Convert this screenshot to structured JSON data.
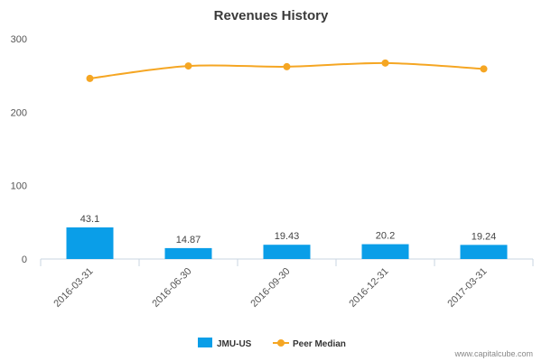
{
  "chart_data": {
    "type": "bar",
    "title": "Revenues History",
    "categories": [
      "2016-03-31",
      "2016-06-30",
      "2016-09-30",
      "2016-12-31",
      "2017-03-31"
    ],
    "ylim": [
      0,
      300
    ],
    "yticks": [
      0,
      100,
      200,
      300
    ],
    "grid": false,
    "legend_position": "bottom",
    "series": [
      {
        "name": "JMU-US",
        "type": "bar",
        "color": "#0a9ee8",
        "values": [
          43.1,
          14.87,
          19.43,
          20.2,
          19.24
        ],
        "labels": [
          "43.1",
          "14.87",
          "19.43",
          "20.2",
          "19.24"
        ]
      },
      {
        "name": "Peer Median",
        "type": "line",
        "color": "#f5a623",
        "values": [
          246,
          263,
          262,
          267,
          259
        ]
      }
    ]
  },
  "watermark": "www.capitalcube.com"
}
